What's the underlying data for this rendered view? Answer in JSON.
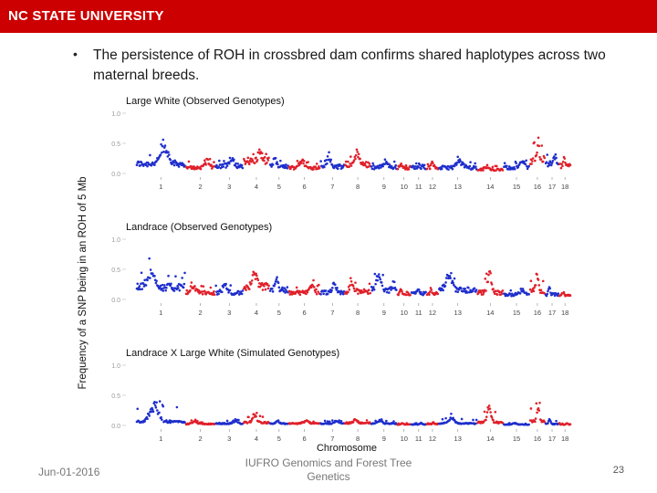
{
  "header": {
    "brand": "NC STATE UNIVERSITY",
    "bar_color": "#cc0000"
  },
  "bullet": {
    "text": "The persistence of ROH in crossbred dam confirms shared haplotypes across two maternal breeds."
  },
  "footer": {
    "date": "Jun-01-2016",
    "center": "IUFRO Genomics and Forest Tree Genetics",
    "page": "23"
  },
  "chart_data": {
    "type": "scatter",
    "ylabel": "Frequency of a SNP being in an ROH of 5 Mb",
    "xlabel": "Chromosome",
    "colors": {
      "odd": "#1f2fcc",
      "even": "#e0202a"
    },
    "chromosome_labels": [
      "1",
      "2",
      "3",
      "4",
      "5",
      "6",
      "7",
      "8",
      "9",
      "10",
      "11",
      "12",
      "13",
      "14",
      "15",
      "16",
      "17",
      "18"
    ],
    "chromosome_relative_sizes": [
      2.7,
      1.6,
      1.5,
      1.4,
      1.0,
      1.7,
      1.3,
      1.4,
      1.4,
      0.7,
      0.8,
      0.6,
      2.1,
      1.4,
      1.4,
      0.8,
      0.7,
      0.6
    ],
    "panels": [
      {
        "title": "Large White (Observed Genotypes)",
        "yticks": [
          "1.0",
          "0.5",
          "0.0"
        ],
        "ylim": [
          0,
          1
        ],
        "chromosome_mean_frequency": [
          0.2,
          0.12,
          0.16,
          0.25,
          0.14,
          0.12,
          0.14,
          0.19,
          0.13,
          0.12,
          0.12,
          0.12,
          0.12,
          0.08,
          0.12,
          0.28,
          0.2,
          0.16
        ],
        "chromosome_peak_frequency": [
          0.5,
          0.25,
          0.3,
          0.45,
          0.3,
          0.25,
          0.3,
          0.4,
          0.25,
          0.2,
          0.2,
          0.25,
          0.25,
          0.15,
          0.25,
          0.65,
          0.38,
          0.3
        ]
      },
      {
        "title": "Landrace (Observed Genotypes)",
        "yticks": [
          "1.0",
          "0.5",
          "0.0"
        ],
        "ylim": [
          0,
          1
        ],
        "chromosome_mean_frequency": [
          0.25,
          0.14,
          0.14,
          0.26,
          0.2,
          0.14,
          0.14,
          0.16,
          0.2,
          0.12,
          0.12,
          0.12,
          0.2,
          0.14,
          0.1,
          0.18,
          0.1,
          0.08
        ],
        "chromosome_peak_frequency": [
          0.55,
          0.28,
          0.3,
          0.55,
          0.45,
          0.3,
          0.3,
          0.35,
          0.5,
          0.2,
          0.2,
          0.2,
          0.45,
          0.5,
          0.2,
          0.5,
          0.25,
          0.15
        ]
      },
      {
        "title": "Landrace X Large White (Simulated Genotypes)",
        "yticks": [
          "1.0",
          "0.5",
          "0.0"
        ],
        "ylim": [
          0,
          1
        ],
        "chromosome_mean_frequency": [
          0.08,
          0.03,
          0.04,
          0.06,
          0.04,
          0.04,
          0.04,
          0.05,
          0.04,
          0.02,
          0.02,
          0.03,
          0.04,
          0.06,
          0.02,
          0.08,
          0.03,
          0.02
        ],
        "chromosome_peak_frequency": [
          0.45,
          0.08,
          0.1,
          0.22,
          0.1,
          0.1,
          0.1,
          0.12,
          0.1,
          0.05,
          0.05,
          0.06,
          0.15,
          0.35,
          0.05,
          0.45,
          0.12,
          0.05
        ]
      }
    ]
  }
}
